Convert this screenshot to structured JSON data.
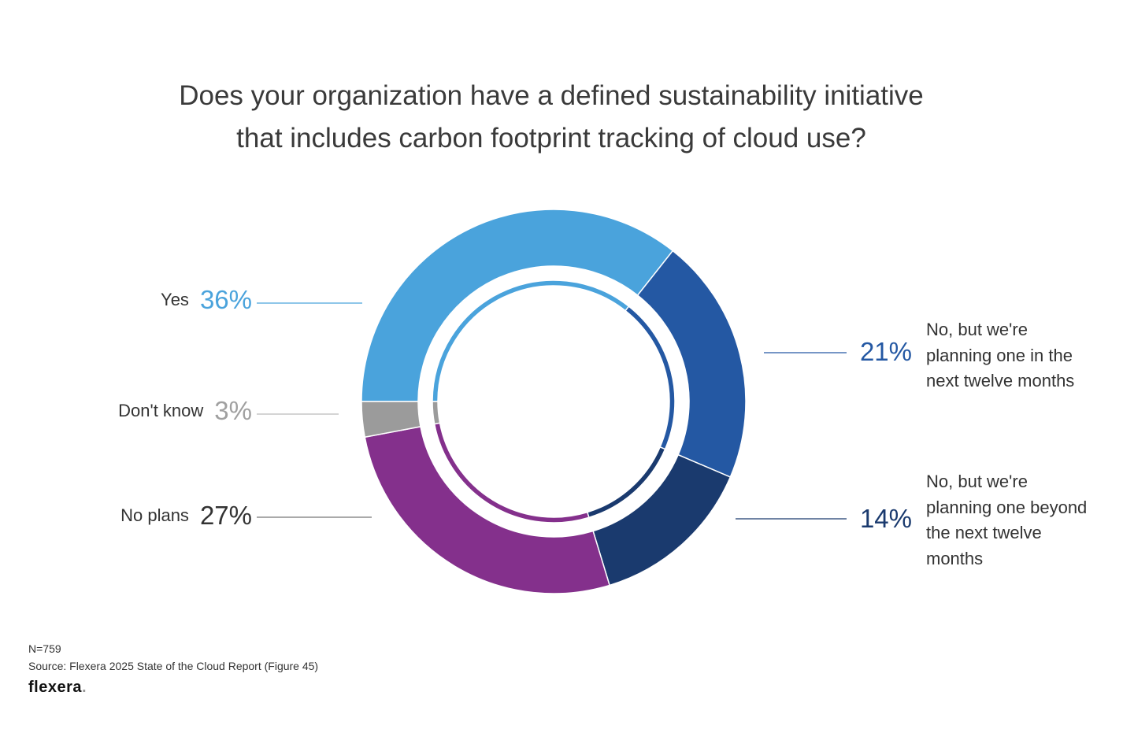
{
  "chart_data": {
    "type": "pie",
    "variant": "donut",
    "title_lines": [
      "Does your organization have a defined sustainability initiative",
      "that includes carbon footprint tracking of cloud use?"
    ],
    "slices": [
      {
        "label": "Yes",
        "value": 36,
        "display": "36%",
        "color": "#4aa3dc",
        "side": "left"
      },
      {
        "label": "No, but we're planning one in the next twelve months",
        "value": 21,
        "display": "21%",
        "color": "#2458a3",
        "side": "right",
        "text_lines": [
          "No, but we're",
          "planning one in the",
          "next twelve months"
        ]
      },
      {
        "label": "No, but we're planning one beyond the next twelve months",
        "value": 14,
        "display": "14%",
        "color": "#1a3a6e",
        "side": "right",
        "text_lines": [
          "No, but we're",
          "planning one beyond",
          "the next twelve",
          "months"
        ]
      },
      {
        "label": "No plans",
        "value": 27,
        "display": "27%",
        "color": "#84308c",
        "side": "left"
      },
      {
        "label": "Don't know",
        "value": 3,
        "display": "3%",
        "color": "#9b9b9b",
        "side": "left"
      }
    ],
    "pct_colors": {
      "Yes": "#4aa3dc",
      "Don't know": "#a0a0a0",
      "No plans": "#333333",
      "twelve": "#2458a3",
      "beyond": "#1a3a6e"
    }
  },
  "footer": {
    "n": "N=759",
    "source": "Source: Flexera 2025 State of the Cloud Report (Figure 45)",
    "logo": "flexera",
    "logo_dot": "."
  }
}
